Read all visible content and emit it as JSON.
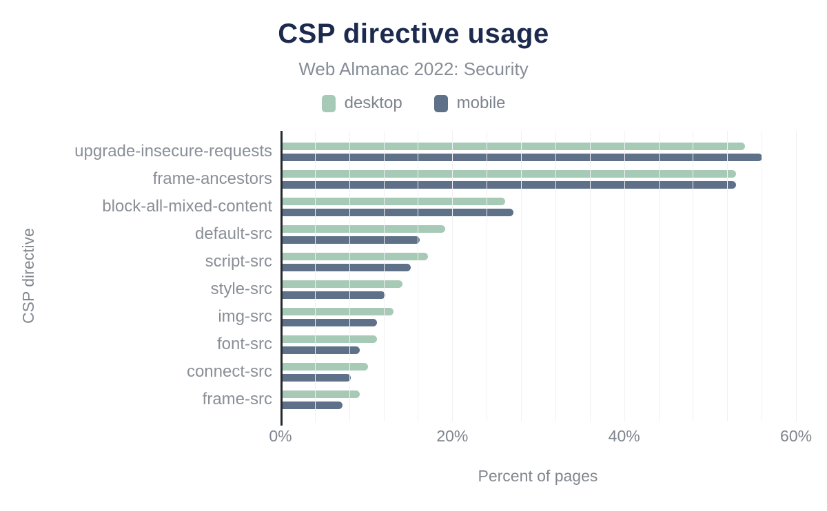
{
  "colors": {
    "title": "#1c2a4e",
    "subtitle": "#878d96",
    "category_label": "#8a8f97",
    "tick_label": "#7f858e",
    "axis_title": "#82878f",
    "axis_line": "#24292f",
    "gridline": "#f0f1f4",
    "background": "#ffffff",
    "desktop": "#a7cab6",
    "mobile": "#5e7189"
  },
  "chart_data": {
    "type": "bar",
    "orientation": "horizontal",
    "title": "CSP directive usage",
    "subtitle": "Web Almanac 2022: Security",
    "xlabel": "Percent of pages",
    "ylabel": "CSP directive",
    "unit": "%",
    "categories": [
      "upgrade-insecure-requests",
      "frame-ancestors",
      "block-all-mixed-content",
      "default-src",
      "script-src",
      "style-src",
      "img-src",
      "font-src",
      "connect-src",
      "frame-src"
    ],
    "series": [
      {
        "name": "desktop",
        "color": "#a7cab6",
        "values": [
          54,
          53,
          26,
          19,
          17,
          14,
          13,
          11,
          10,
          9
        ]
      },
      {
        "name": "mobile",
        "color": "#5e7189",
        "values": [
          56,
          53,
          27,
          16,
          15,
          12,
          11,
          9,
          8,
          7
        ]
      }
    ],
    "xlim": [
      0,
      62.4
    ],
    "xticks": [
      {
        "value": 0,
        "label": "0%"
      },
      {
        "value": 20,
        "label": "20%"
      },
      {
        "value": 40,
        "label": "40%"
      },
      {
        "value": 60,
        "label": "60%"
      }
    ],
    "grid": true,
    "grid_step": 4,
    "legend_position": "top"
  }
}
